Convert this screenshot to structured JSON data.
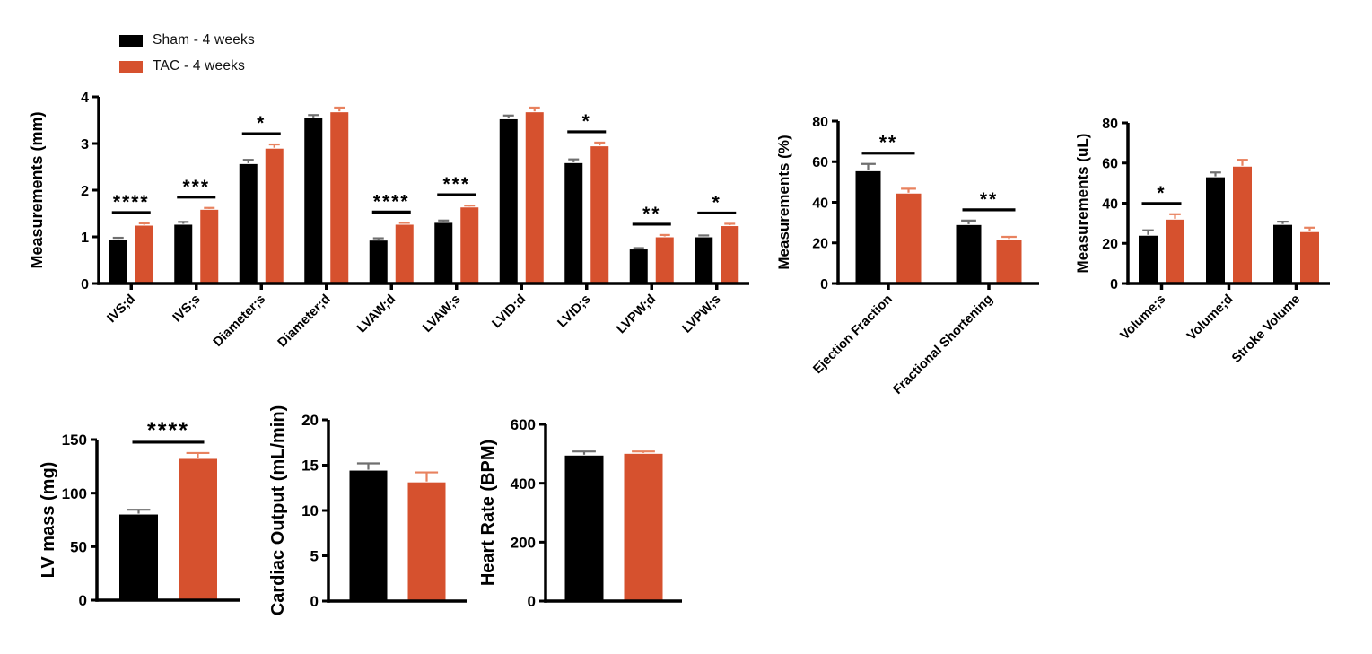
{
  "legend": {
    "items": [
      {
        "label": "Sham - 4 weeks",
        "color": "#000000"
      },
      {
        "label": "TAC - 4 weeks",
        "color": "#D6512E"
      }
    ]
  },
  "colors": {
    "sham_bar": "#000000",
    "tac_bar": "#D6512E",
    "sham_error": "#6F6F6F",
    "tac_error": "#E8825F",
    "axis": "#000000",
    "background": "#FFFFFF"
  },
  "chart_data": [
    {
      "id": "measurements-mm",
      "type": "bar",
      "title": "",
      "xlabel": "",
      "ylabel": "Measurements (mm)",
      "ylim": [
        0,
        4
      ],
      "yticks": [
        0,
        1,
        2,
        3,
        4
      ],
      "grid": false,
      "legend_position": "above-top-left",
      "categories": [
        "IVS;d",
        "IVS;s",
        "Diameter;s",
        "Diameter;d",
        "LVAW;d",
        "LVAW;s",
        "LVID;d",
        "LVID;s",
        "LVPW;d",
        "LVPW;s"
      ],
      "series": [
        {
          "name": "Sham - 4 weeks",
          "values": [
            0.94,
            1.26,
            2.56,
            3.54,
            0.92,
            1.3,
            3.52,
            2.58,
            0.73,
            0.99
          ],
          "errors": [
            0.04,
            0.06,
            0.09,
            0.07,
            0.05,
            0.05,
            0.08,
            0.08,
            0.03,
            0.04
          ]
        },
        {
          "name": "TAC - 4 weeks",
          "values": [
            1.24,
            1.58,
            2.89,
            3.67,
            1.26,
            1.63,
            3.67,
            2.94,
            0.99,
            1.23
          ],
          "errors": [
            0.05,
            0.04,
            0.09,
            0.1,
            0.04,
            0.04,
            0.1,
            0.08,
            0.05,
            0.05
          ]
        }
      ],
      "significance": [
        "****",
        "***",
        "*",
        null,
        "****",
        "***",
        null,
        "*",
        "**",
        "*"
      ]
    },
    {
      "id": "measurements-pct",
      "type": "bar",
      "title": "",
      "xlabel": "",
      "ylabel": "Measurements (%)",
      "ylim": [
        0,
        80
      ],
      "yticks": [
        0,
        20,
        40,
        60,
        80
      ],
      "grid": false,
      "categories": [
        "Ejection Fraction",
        "Fractional Shortening"
      ],
      "series": [
        {
          "name": "Sham - 4 weeks",
          "values": [
            55.3,
            28.8
          ],
          "errors": [
            3.6,
            2.2
          ]
        },
        {
          "name": "TAC - 4 weeks",
          "values": [
            44.3,
            21.5
          ],
          "errors": [
            2.4,
            1.5
          ]
        }
      ],
      "significance": [
        "**",
        "**"
      ]
    },
    {
      "id": "measurements-ul",
      "type": "bar",
      "title": "",
      "xlabel": "",
      "ylabel": "Measurements (uL)",
      "ylim": [
        0,
        80
      ],
      "yticks": [
        0,
        20,
        40,
        60,
        80
      ],
      "grid": false,
      "categories": [
        "Volume;s",
        "Volume;d",
        "Stroke Volume"
      ],
      "series": [
        {
          "name": "Sham - 4 weeks",
          "values": [
            23.8,
            52.9,
            29.2
          ],
          "errors": [
            2.7,
            2.4,
            1.6
          ]
        },
        {
          "name": "TAC - 4 weeks",
          "values": [
            31.8,
            58.2,
            25.6
          ],
          "errors": [
            2.7,
            3.4,
            2.2
          ]
        }
      ],
      "significance": [
        "*",
        null,
        null
      ]
    },
    {
      "id": "lv-mass",
      "type": "bar",
      "title": "",
      "xlabel": "",
      "ylabel": "LV mass (mg)",
      "ylim": [
        0,
        150
      ],
      "yticks": [
        0,
        50,
        100,
        150
      ],
      "grid": false,
      "categories": [
        ""
      ],
      "series": [
        {
          "name": "Sham - 4 weeks",
          "values": [
            80
          ],
          "errors": [
            4.5
          ]
        },
        {
          "name": "TAC - 4 weeks",
          "values": [
            132
          ],
          "errors": [
            5.5
          ]
        }
      ],
      "significance": [
        "****"
      ]
    },
    {
      "id": "cardiac-output",
      "type": "bar",
      "title": "",
      "xlabel": "",
      "ylabel": "Cardiac Output (mL/min)",
      "ylim": [
        0,
        20
      ],
      "yticks": [
        0,
        5,
        10,
        15,
        20
      ],
      "grid": false,
      "categories": [
        ""
      ],
      "series": [
        {
          "name": "Sham - 4 weeks",
          "values": [
            14.4
          ],
          "errors": [
            0.8
          ]
        },
        {
          "name": "TAC - 4 weeks",
          "values": [
            13.1
          ],
          "errors": [
            1.1
          ]
        }
      ],
      "significance": [
        null
      ]
    },
    {
      "id": "heart-rate",
      "type": "bar",
      "title": "",
      "xlabel": "",
      "ylabel": "Heart Rate (BPM)",
      "ylim": [
        0,
        600
      ],
      "yticks": [
        0,
        200,
        400,
        600
      ],
      "grid": false,
      "categories": [
        ""
      ],
      "series": [
        {
          "name": "Sham - 4 weeks",
          "values": [
            494
          ],
          "errors": [
            14
          ]
        },
        {
          "name": "TAC - 4 weeks",
          "values": [
            500
          ],
          "errors": [
            8
          ]
        }
      ],
      "significance": [
        null
      ]
    }
  ]
}
